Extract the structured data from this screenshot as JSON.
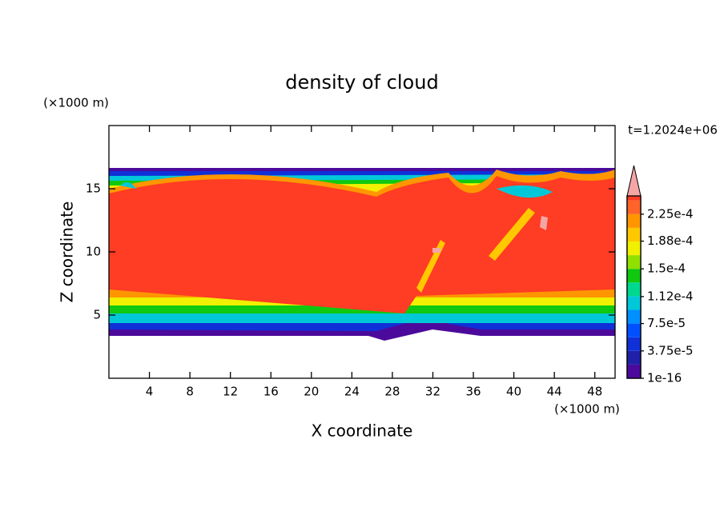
{
  "chart_data": {
    "type": "contour",
    "title": "density of cloud",
    "x_label": "X coordinate",
    "y_label": "Z coordinate",
    "x_unit": "(×1000 m)",
    "y_unit": "(×1000 m)",
    "time_label": "t=1.2024e+06",
    "xlim": [
      0,
      50
    ],
    "xticks": [
      4,
      8,
      12,
      16,
      20,
      24,
      28,
      32,
      36,
      40,
      44,
      48
    ],
    "ylim": [
      0,
      20
    ],
    "yticks": [
      5,
      10,
      15
    ],
    "colorbar": {
      "lim": [
        1e-16,
        0.00025
      ],
      "levels": [
        1e-16,
        1.875e-05,
        3.75e-05,
        5.625e-05,
        7.5e-05,
        9.375e-05,
        0.0001125,
        0.00013125,
        0.00015,
        0.00016875,
        0.0001875,
        0.00020625,
        0.000225,
        0.00024375
      ],
      "colors": [
        "#4b0a9b",
        "#2020a8",
        "#1030d8",
        "#0050ff",
        "#0090ff",
        "#00c8d8",
        "#00d890",
        "#10c810",
        "#90e000",
        "#f0f000",
        "#ffc800",
        "#ff9600",
        "#ff6428",
        "#ff3c24"
      ],
      "extend_color": "#f4a6a6",
      "ticks": [
        {
          "value": 1e-16,
          "label": "1e-16"
        },
        {
          "value": 3.75e-05,
          "label": "3.75e-5"
        },
        {
          "value": 7.5e-05,
          "label": "7.5e-5"
        },
        {
          "value": 0.000112,
          "label": "1.12e-4"
        },
        {
          "value": 0.00015,
          "label": "1.5e-4"
        },
        {
          "value": 0.000188,
          "label": "1.88e-4"
        },
        {
          "value": 0.000225,
          "label": "2.25e-4"
        }
      ]
    }
  }
}
